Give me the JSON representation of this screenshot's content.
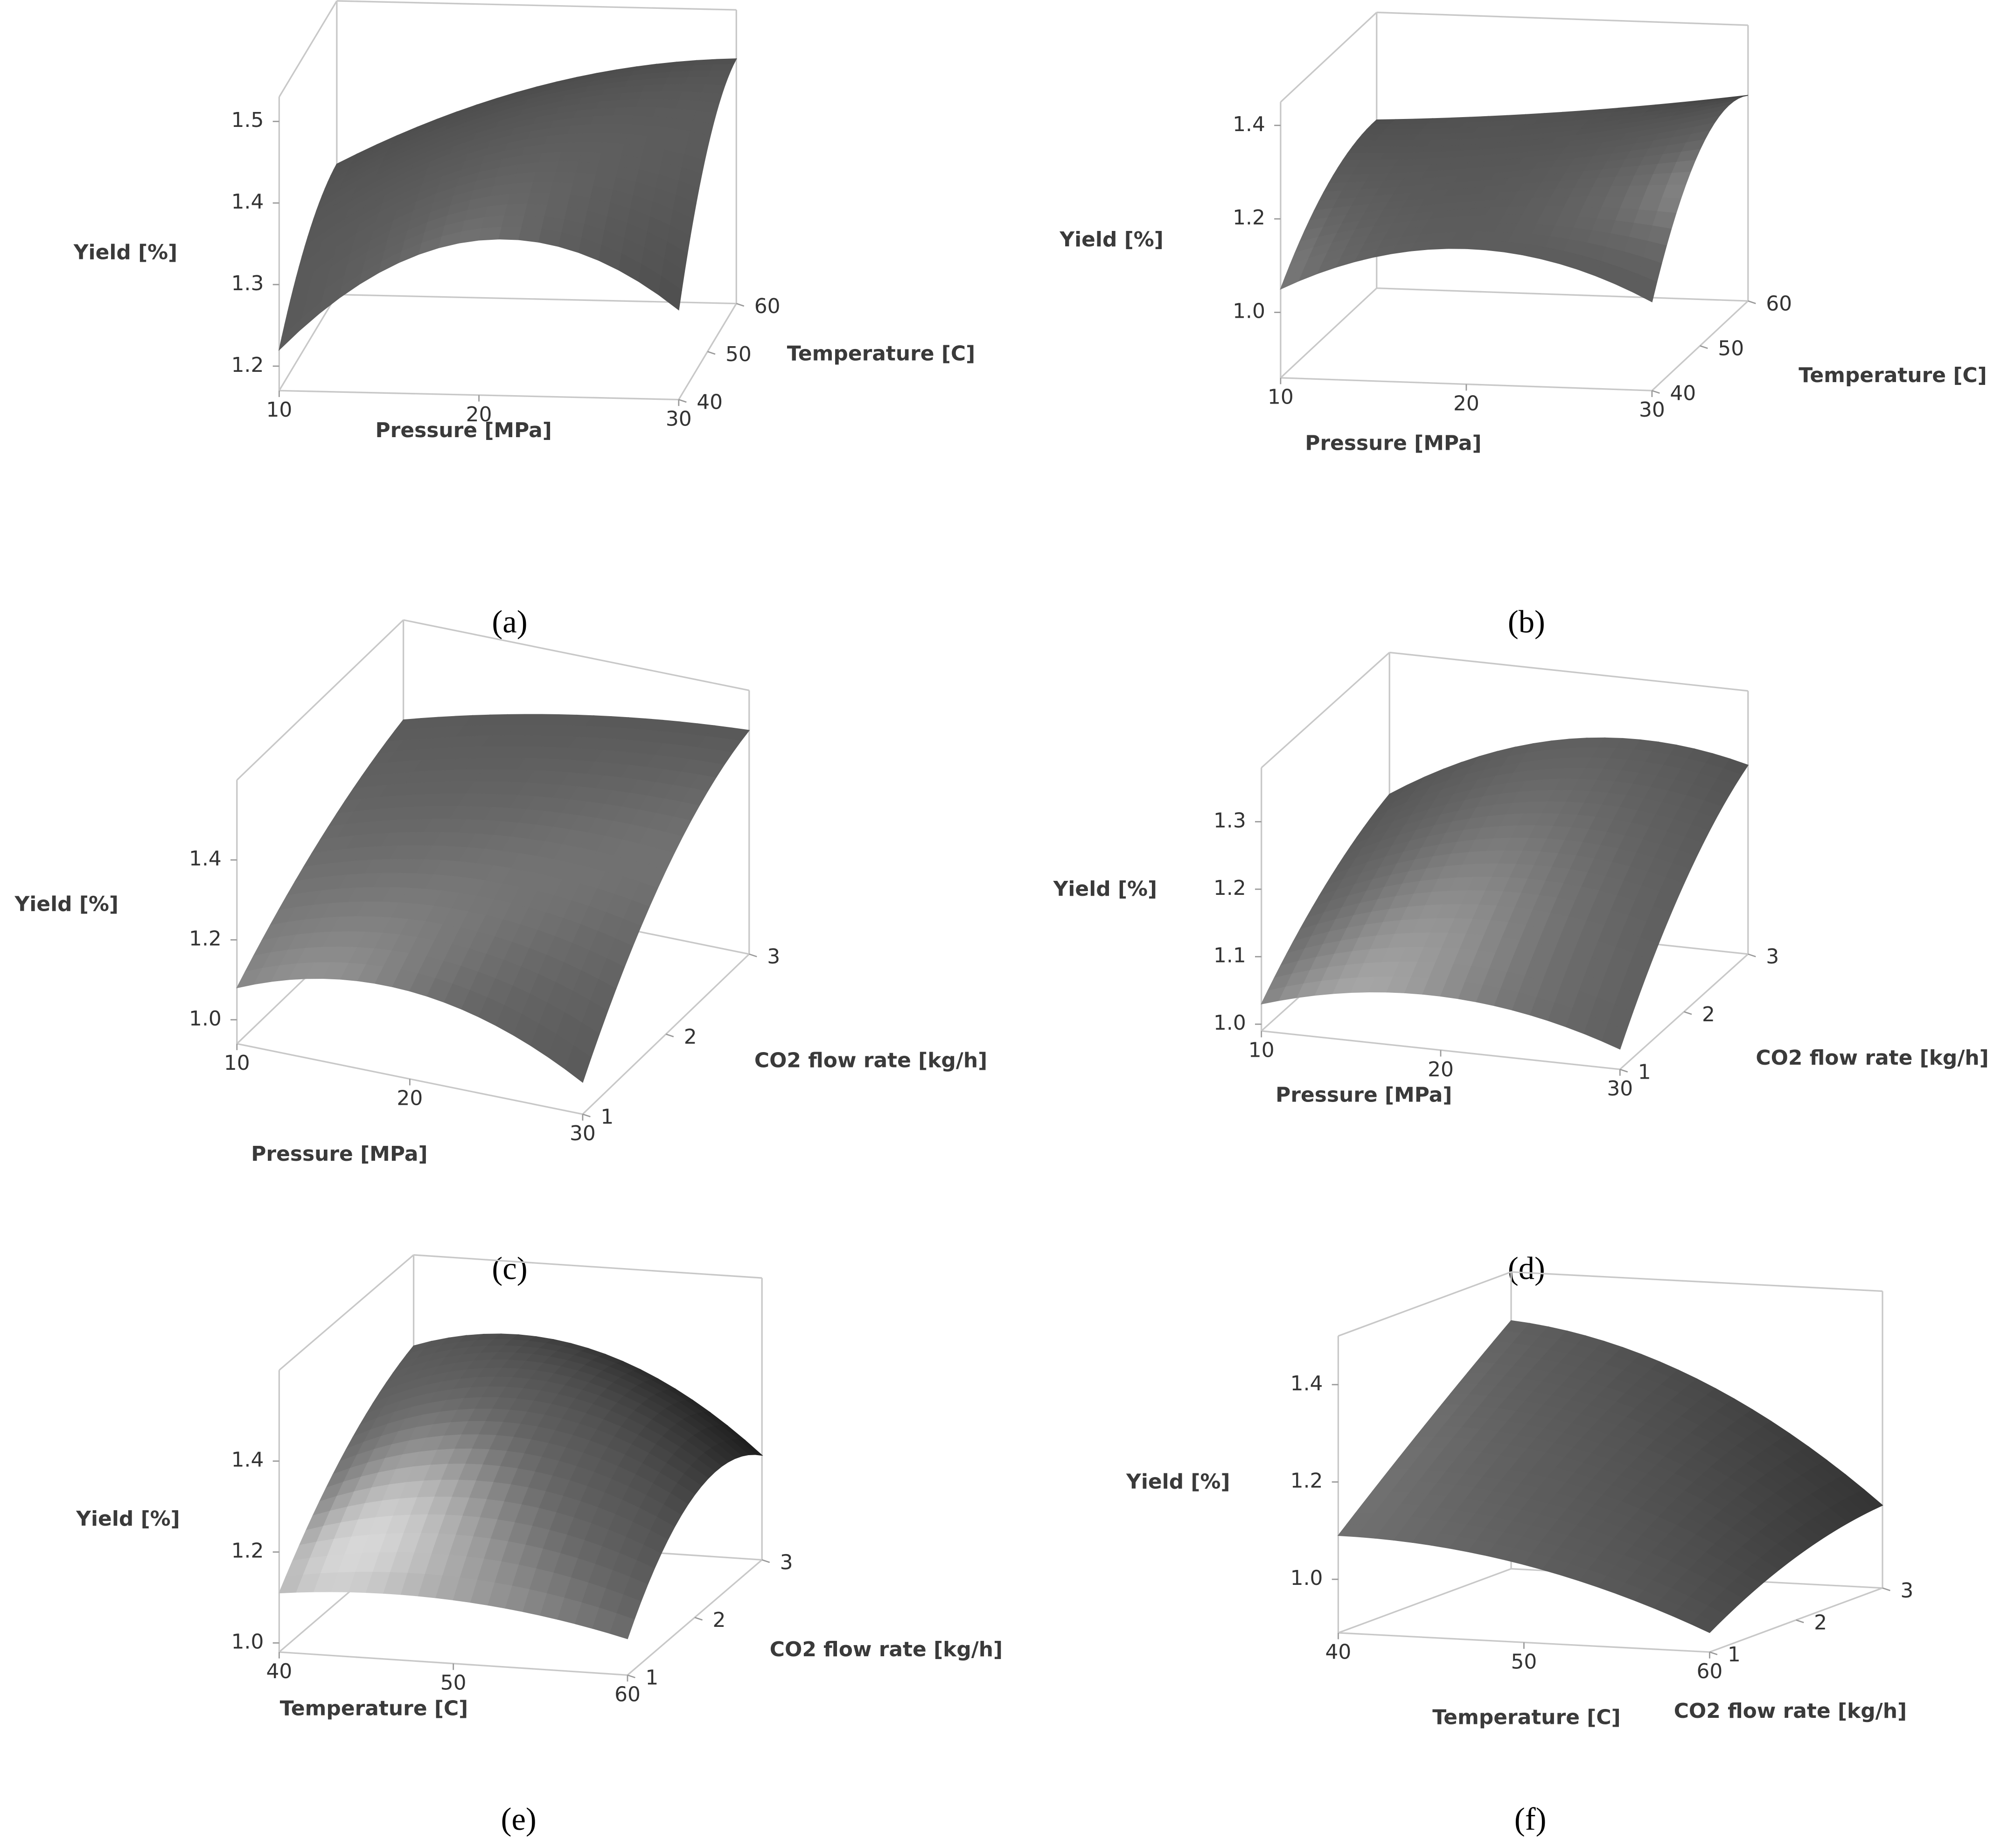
{
  "chart_data": [
    {
      "type": "surface",
      "caption": "(a)",
      "xlabel": "Pressure [MPa]",
      "ylabel": "Temperature [C]",
      "zlabel": "Yield [%]",
      "xlim": [
        10,
        30
      ],
      "ylim": [
        40,
        60
      ],
      "zlim": [
        1.17,
        1.53
      ],
      "xticks": [
        10,
        20,
        30
      ],
      "yticks": [
        40,
        50,
        60
      ],
      "zticks": [
        1.2,
        1.3,
        1.4,
        1.5
      ],
      "x": [
        10,
        20,
        30
      ],
      "y": [
        40,
        50,
        60
      ],
      "z": [
        [
          1.22,
          1.3,
          1.33
        ],
        [
          1.36,
          1.42,
          1.43
        ],
        [
          1.28,
          1.42,
          1.47
        ]
      ]
    },
    {
      "type": "surface",
      "caption": "(b)",
      "xlabel": "Pressure [MPa]",
      "ylabel": "Temperature [C]",
      "zlabel": "Yield [%]",
      "xlim": [
        10,
        30
      ],
      "ylim": [
        40,
        60
      ],
      "zlim": [
        0.86,
        1.45
      ],
      "xticks": [
        10,
        20,
        30
      ],
      "yticks": [
        40,
        50,
        60
      ],
      "zticks": [
        {
          "value": 1.0,
          "label": "1.0"
        },
        1.2,
        1.4
      ],
      "x": [
        10,
        20,
        30
      ],
      "y": [
        40,
        50,
        60
      ],
      "z": [
        [
          1.05,
          1.18,
          1.22
        ],
        [
          1.15,
          1.22,
          1.25
        ],
        [
          1.05,
          1.28,
          1.3
        ]
      ]
    },
    {
      "type": "surface",
      "caption": "(c)",
      "xlabel": "Pressure [MPa]",
      "ylabel": "CO2 flow rate [kg/h]",
      "zlabel": "Yield [%]",
      "xlim": [
        10,
        30
      ],
      "ylim": [
        1,
        3
      ],
      "zlim": [
        0.94,
        1.6
      ],
      "xticks": [
        10,
        20,
        30
      ],
      "yticks": [
        1,
        2,
        3
      ],
      "zticks": [
        {
          "value": 1.0,
          "label": "1.0"
        },
        1.2,
        1.4
      ],
      "x": [
        10,
        20,
        30
      ],
      "y": [
        1,
        2,
        3
      ],
      "z": [
        [
          1.08,
          1.25,
          1.35
        ],
        [
          1.16,
          1.35,
          1.45
        ],
        [
          1.02,
          1.35,
          1.5
        ]
      ]
    },
    {
      "type": "surface",
      "caption": "(d)",
      "xlabel": "Pressure [MPa]",
      "ylabel": "CO2 flow rate [kg/h]",
      "zlabel": "Yield [%]",
      "xlim": [
        10,
        30
      ],
      "ylim": [
        1,
        3
      ],
      "zlim": [
        0.99,
        1.38
      ],
      "xticks": [
        10,
        20,
        30
      ],
      "yticks": [
        1,
        2,
        3
      ],
      "zticks": [
        {
          "value": 1.0,
          "label": "1.0"
        },
        1.1,
        1.2,
        1.3
      ],
      "x": [
        10,
        20,
        30
      ],
      "y": [
        1,
        2,
        3
      ],
      "z": [
        [
          1.03,
          1.12,
          1.17
        ],
        [
          1.07,
          1.2,
          1.28
        ],
        [
          1.02,
          1.18,
          1.27
        ]
      ]
    },
    {
      "type": "surface",
      "caption": "(e)",
      "xlabel": "Temperature [C]",
      "ylabel": "CO2 flow rate [kg/h]",
      "zlabel": "Yield [%]",
      "xlim": [
        40,
        60
      ],
      "ylim": [
        1,
        3
      ],
      "zlim": [
        0.98,
        1.6
      ],
      "xticks": [
        40,
        50,
        60
      ],
      "yticks": [
        1,
        2,
        3
      ],
      "zticks": [
        {
          "value": 1.0,
          "label": "1.0"
        },
        1.2,
        1.4
      ],
      "x": [
        40,
        50,
        60
      ],
      "y": [
        1,
        2,
        3
      ],
      "z": [
        [
          1.11,
          1.3,
          1.4
        ],
        [
          1.12,
          1.38,
          1.42
        ],
        [
          1.06,
          1.25,
          1.21
        ]
      ]
    },
    {
      "type": "surface",
      "caption": "(f)",
      "xlabel": "Temperature [C]",
      "ylabel": "CO2 flow rate [kg/h]",
      "zlabel": "Yield [%]",
      "xlim": [
        40,
        60
      ],
      "ylim": [
        1,
        3
      ],
      "zlim": [
        0.89,
        1.5
      ],
      "xticks": [
        40,
        50,
        60
      ],
      "yticks": [
        1,
        2,
        3
      ],
      "zticks": [
        {
          "value": 1.0,
          "label": "1.0"
        },
        1.2,
        1.4
      ],
      "x": [
        40,
        50,
        60
      ],
      "y": [
        1,
        2,
        3
      ],
      "z": [
        [
          1.09,
          1.25,
          1.4
        ],
        [
          1.05,
          1.2,
          1.3
        ],
        [
          0.93,
          1.02,
          1.06
        ]
      ]
    }
  ]
}
